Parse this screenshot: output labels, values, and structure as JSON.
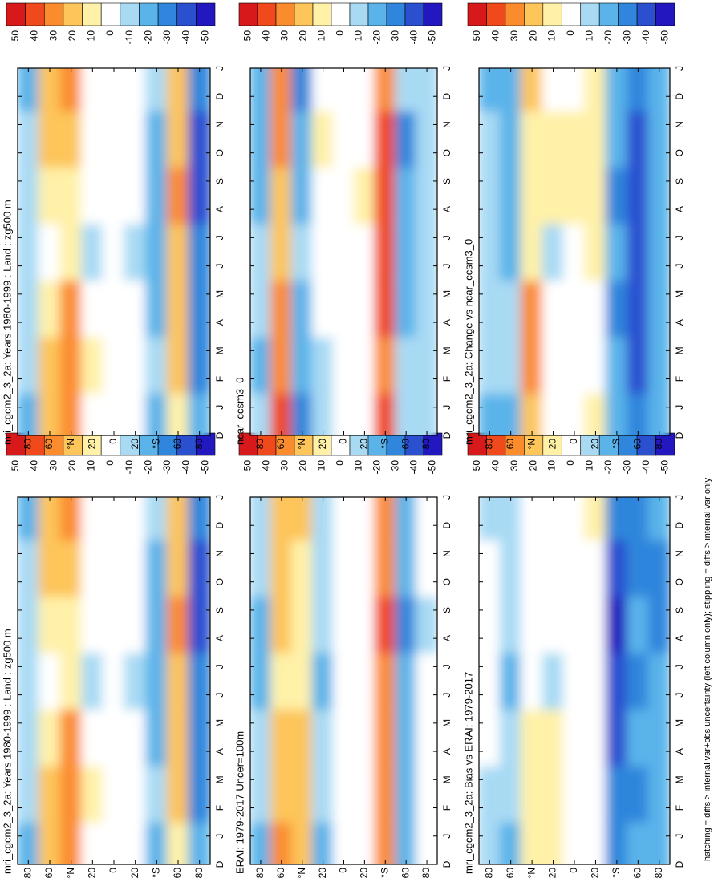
{
  "axes": {
    "months": [
      "D",
      "J",
      "F",
      "M",
      "A",
      "M",
      "J",
      "J",
      "A",
      "S",
      "O",
      "N",
      "D",
      "J"
    ],
    "xlim": [
      0,
      13
    ],
    "ylim": [
      -90,
      90
    ],
    "yticks": [
      80,
      60,
      {
        "value": 40,
        "label": "°N"
      },
      20,
      0,
      {
        "value": -20,
        "label": "20"
      },
      {
        "value": -40,
        "label": "°S"
      },
      {
        "value": -60,
        "label": "60"
      },
      {
        "value": -80,
        "label": "80"
      }
    ]
  },
  "colorbar": {
    "ticks": [
      50,
      40,
      30,
      20,
      10,
      0,
      -10,
      -20,
      -30,
      -40,
      -50
    ],
    "clim": [
      -55,
      55
    ],
    "colors": [
      "#d7191c",
      "#f04a1c",
      "#fb8c2e",
      "#fdc55a",
      "#fff1a8",
      "#ffffff",
      "#a8daf4",
      "#5ab4ea",
      "#2f86dc",
      "#2a50d0",
      "#2318c0"
    ]
  },
  "chart_data": [
    {
      "type": "contour",
      "title": "mri_cgcm2_3_2a: Years 1980-1999 : Land : zg500 m",
      "field": {
        "x": [
          0.5,
          2.5,
          4.5,
          6.5,
          8.5,
          10.5,
          12.5
        ],
        "lat": [
          80,
          60,
          40,
          20,
          0,
          -20,
          -40,
          -60,
          -80
        ],
        "values": [
          [
            -15,
            -10,
            -10,
            -10,
            -5,
            -10,
            -15
          ],
          [
            25,
            20,
            15,
            5,
            15,
            20,
            25
          ],
          [
            35,
            35,
            30,
            15,
            10,
            20,
            30
          ],
          [
            5,
            10,
            5,
            -5,
            5,
            0,
            5
          ],
          [
            5,
            5,
            5,
            5,
            5,
            5,
            5
          ],
          [
            0,
            5,
            0,
            -5,
            0,
            5,
            5
          ],
          [
            -15,
            -10,
            -15,
            -15,
            -20,
            -15,
            -10
          ],
          [
            15,
            20,
            25,
            25,
            30,
            25,
            20
          ],
          [
            -20,
            -25,
            -25,
            -30,
            -40,
            -35,
            -25
          ]
        ]
      }
    },
    {
      "type": "contour",
      "title": "ERAI: 1979-2017 Uncer=100m",
      "field": {
        "x": [
          0.5,
          2.5,
          4.5,
          6.5,
          8.5,
          10.5,
          12.5
        ],
        "lat": [
          80,
          60,
          40,
          20,
          0,
          -20,
          -40,
          -60,
          -80
        ],
        "values": [
          [
            -15,
            -10,
            -10,
            -15,
            -15,
            -10,
            -10
          ],
          [
            30,
            25,
            20,
            10,
            20,
            25,
            25
          ],
          [
            25,
            25,
            20,
            10,
            10,
            15,
            20
          ],
          [
            -15,
            -10,
            -10,
            -15,
            -10,
            -10,
            -10
          ],
          [
            0,
            5,
            5,
            0,
            0,
            0,
            5
          ],
          [
            0,
            5,
            0,
            0,
            5,
            5,
            0
          ],
          [
            35,
            30,
            35,
            35,
            40,
            35,
            30
          ],
          [
            -15,
            -20,
            -20,
            -15,
            -25,
            -20,
            -15
          ],
          [
            5,
            5,
            0,
            0,
            -5,
            5,
            5
          ]
        ]
      }
    },
    {
      "type": "contour",
      "title": "mri_cgcm2_3_2a: Bias vs ERAI: 1979-2017",
      "field": {
        "x": [
          0.5,
          2.5,
          4.5,
          6.5,
          8.5,
          10.5,
          12.5
        ],
        "lat": [
          80,
          60,
          40,
          20,
          0,
          -20,
          -40,
          -60,
          -80
        ],
        "values": [
          [
            -5,
            -5,
            5,
            0,
            0,
            0,
            -5
          ],
          [
            -15,
            -10,
            -10,
            -20,
            -10,
            -10,
            -5
          ],
          [
            10,
            15,
            10,
            5,
            5,
            5,
            5
          ],
          [
            15,
            15,
            10,
            -10,
            5,
            5,
            5
          ],
          [
            0,
            0,
            0,
            0,
            0,
            0,
            0
          ],
          [
            5,
            0,
            0,
            0,
            0,
            5,
            10
          ],
          [
            -30,
            -30,
            -40,
            -35,
            -45,
            -35,
            -30
          ],
          [
            -20,
            -25,
            -20,
            -25,
            -20,
            -25,
            -25
          ],
          [
            -20,
            -20,
            -20,
            -20,
            -30,
            -25,
            -20
          ]
        ]
      }
    },
    {
      "type": "contour",
      "title": "mri_cgcm2_3_2a: Years 1980-1999 : Land : zg500 m",
      "field": {
        "x": [
          0.5,
          2.5,
          4.5,
          6.5,
          8.5,
          10.5,
          12.5
        ],
        "lat": [
          80,
          60,
          40,
          20,
          0,
          -20,
          -40,
          -60,
          -80
        ],
        "values": [
          [
            -15,
            -10,
            -10,
            -10,
            -5,
            -10,
            -15
          ],
          [
            25,
            20,
            15,
            5,
            15,
            20,
            25
          ],
          [
            35,
            35,
            30,
            15,
            10,
            20,
            30
          ],
          [
            5,
            10,
            5,
            -5,
            5,
            0,
            5
          ],
          [
            5,
            5,
            5,
            5,
            5,
            5,
            5
          ],
          [
            0,
            5,
            0,
            -5,
            0,
            5,
            5
          ],
          [
            -15,
            -10,
            -15,
            -15,
            -20,
            -15,
            -10
          ],
          [
            15,
            20,
            25,
            25,
            30,
            25,
            20
          ],
          [
            -20,
            -25,
            -25,
            -30,
            -40,
            -35,
            -25
          ]
        ]
      }
    },
    {
      "type": "contour",
      "title": "ncar_ccsm3_0",
      "field": {
        "x": [
          0.5,
          2.5,
          4.5,
          6.5,
          8.5,
          10.5,
          12.5
        ],
        "lat": [
          80,
          60,
          40,
          20,
          0,
          -20,
          -40,
          -60,
          -80
        ],
        "values": [
          [
            -10,
            -15,
            -10,
            -10,
            -15,
            -20,
            -15
          ],
          [
            40,
            35,
            30,
            20,
            25,
            30,
            35
          ],
          [
            -25,
            -20,
            -15,
            -10,
            -15,
            -20,
            -25
          ],
          [
            -10,
            -5,
            0,
            0,
            5,
            10,
            5
          ],
          [
            0,
            0,
            0,
            0,
            0,
            5,
            0
          ],
          [
            0,
            5,
            0,
            0,
            10,
            5,
            0
          ],
          [
            40,
            35,
            40,
            45,
            40,
            45,
            35
          ],
          [
            -10,
            -10,
            -15,
            -15,
            -20,
            -25,
            -10
          ],
          [
            -5,
            -5,
            -10,
            -10,
            -10,
            -5,
            -5
          ]
        ]
      }
    },
    {
      "type": "contour",
      "title": "mri_cgcm2_3_2a: Change vs ncar_ccsm3_0",
      "field": {
        "x": [
          0.5,
          2.5,
          4.5,
          6.5,
          8.5,
          10.5,
          12.5
        ],
        "lat": [
          80,
          60,
          40,
          20,
          0,
          -20,
          -40,
          -60,
          -80
        ],
        "values": [
          [
            -15,
            -10,
            -10,
            -10,
            -10,
            -10,
            -15
          ],
          [
            -20,
            -10,
            -10,
            -15,
            -15,
            -15,
            -15
          ],
          [
            25,
            30,
            35,
            15,
            10,
            15,
            20
          ],
          [
            5,
            5,
            5,
            -5,
            10,
            10,
            5
          ],
          [
            0,
            0,
            0,
            5,
            10,
            10,
            5
          ],
          [
            10,
            5,
            5,
            10,
            10,
            15,
            10
          ],
          [
            -15,
            -20,
            -30,
            -20,
            -25,
            -20,
            -20
          ],
          [
            -30,
            -35,
            -40,
            -35,
            -40,
            -40,
            -30
          ],
          [
            -15,
            -15,
            -20,
            -20,
            -20,
            -20,
            -15
          ]
        ]
      }
    }
  ],
  "footnote": "hatching = diffs > internal var+obs uncertainty (left column only); stippling = diffs > internal var only"
}
